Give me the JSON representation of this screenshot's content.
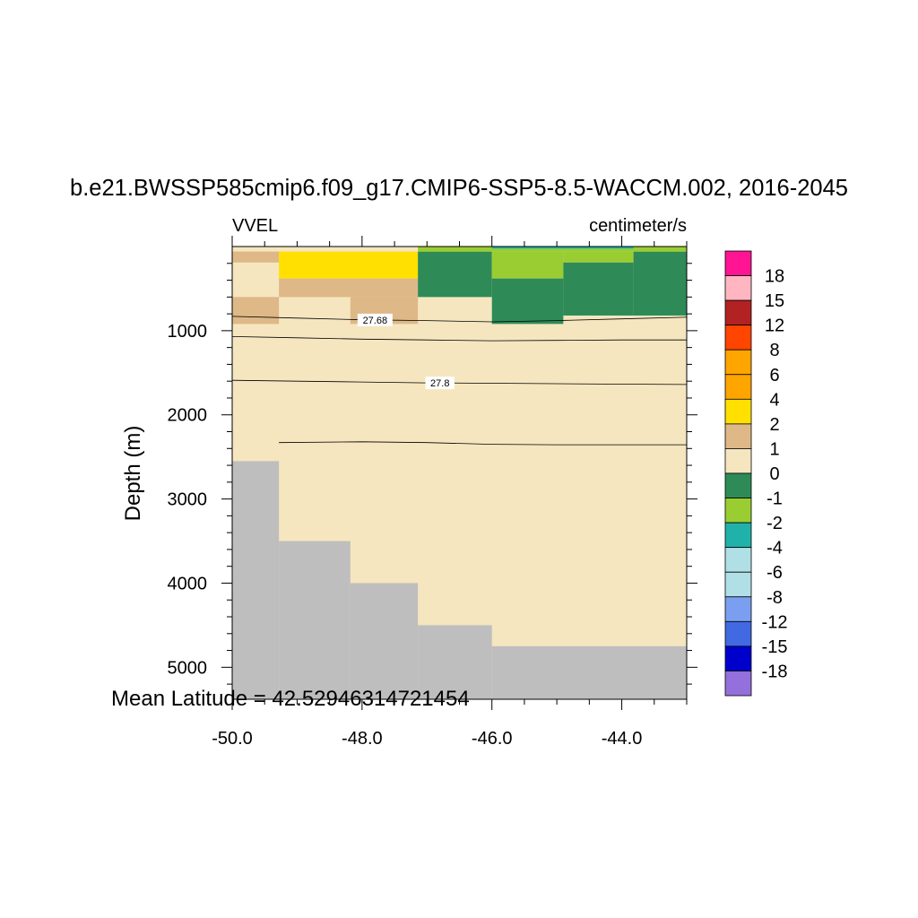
{
  "chart_data": {
    "type": "heatmap",
    "title": "b.e21.BWSSP585cmip6.f09_g17.CMIP6-SSP5-8.5-WACCM.002, 2016-2045",
    "left_subtitle": "VVEL",
    "right_subtitle": "centimeter/s",
    "xlabel": "",
    "ylabel": "Depth (m)",
    "footer_text": "Mean Latitude = 42.52946314721454",
    "xlim": [
      -50.0,
      -43.0
    ],
    "ylim": [
      5380,
      0
    ],
    "x_ticks": [
      -50.0,
      -48.0,
      -46.0,
      -44.0
    ],
    "x_tick_labels": [
      "-50.0",
      "-48.0",
      "-46.0",
      "-44.0"
    ],
    "y_ticks": [
      1000,
      2000,
      3000,
      4000,
      5000
    ],
    "y_tick_labels": [
      "1000",
      "2000",
      "3000",
      "4000",
      "5000"
    ],
    "colorbar": {
      "labels": [
        "18",
        "15",
        "12",
        "8",
        "6",
        "4",
        "2",
        "1",
        "0",
        "-1",
        "-2",
        "-4",
        "-6",
        "-8",
        "-12",
        "-15",
        "-18"
      ],
      "colors": [
        "#ff1493",
        "#ffb6c1",
        "#b22222",
        "#ff4500",
        "#ffa500",
        "#ffa500",
        "#ffe000",
        "#deb887",
        "#f5e6bf",
        "#2e8b57",
        "#9acd32",
        "#20b2aa",
        "#b0e0e6",
        "#b0e0e6",
        "#7b9ff0",
        "#4169e1",
        "#0000cd",
        "#9370db"
      ]
    },
    "missing_color": "#bebebe",
    "cells": [
      {
        "x0": -50.0,
        "x1": -43.0,
        "y0": 0,
        "y1": 5380,
        "v": 0.5
      },
      {
        "x0": -50.0,
        "x1": -49.28,
        "y0": 60,
        "y1": 190,
        "v": 1.5
      },
      {
        "x0": -50.0,
        "x1": -49.28,
        "y0": 600,
        "y1": 920,
        "v": 1.5
      },
      {
        "x0": -49.28,
        "x1": -47.14,
        "y0": 60,
        "y1": 380,
        "v": 3
      },
      {
        "x0": -49.28,
        "x1": -47.14,
        "y0": 380,
        "y1": 600,
        "v": 1.5
      },
      {
        "x0": -48.18,
        "x1": -47.14,
        "y0": 600,
        "y1": 920,
        "v": 1.5
      },
      {
        "x0": -47.14,
        "x1": -46.0,
        "y0": 60,
        "y1": 600,
        "v": -0.5
      },
      {
        "x0": -46.0,
        "x1": -44.9,
        "y0": 60,
        "y1": 380,
        "v": -1.5
      },
      {
        "x0": -46.0,
        "x1": -44.9,
        "y0": 380,
        "y1": 920,
        "v": -0.5
      },
      {
        "x0": -44.9,
        "x1": -43.82,
        "y0": 60,
        "y1": 190,
        "v": -1.5
      },
      {
        "x0": -44.9,
        "x1": -43.82,
        "y0": 190,
        "y1": 820,
        "v": -0.5
      },
      {
        "x0": -43.82,
        "x1": -43.0,
        "y0": 60,
        "y1": 820,
        "v": -0.5
      },
      {
        "x0": -47.14,
        "x1": -43.0,
        "y0": 0,
        "y1": 60,
        "v": -1.5
      },
      {
        "x0": -46.0,
        "x1": -43.82,
        "y0": 0,
        "y1": 25,
        "v": -3
      },
      {
        "x0": -50.0,
        "x1": -49.28,
        "y0": 2550,
        "y1": 5380,
        "v": null
      },
      {
        "x0": -49.28,
        "x1": -48.18,
        "y0": 3500,
        "y1": 5380,
        "v": null
      },
      {
        "x0": -48.18,
        "x1": -47.14,
        "y0": 4000,
        "y1": 5380,
        "v": null
      },
      {
        "x0": -47.14,
        "x1": -46.0,
        "y0": 4500,
        "y1": 5380,
        "v": null
      },
      {
        "x0": -46.0,
        "x1": -43.0,
        "y0": 4750,
        "y1": 5380,
        "v": null
      }
    ],
    "contours": [
      {
        "label": "27.68",
        "label_x": -47.8,
        "points": [
          [
            -50.0,
            830
          ],
          [
            -49.0,
            850
          ],
          [
            -48.0,
            870
          ],
          [
            -47.0,
            880
          ],
          [
            -46.0,
            895
          ],
          [
            -45.0,
            880
          ],
          [
            -44.0,
            860
          ],
          [
            -43.0,
            840
          ]
        ]
      },
      {
        "label": "",
        "points": [
          [
            -50.0,
            1070
          ],
          [
            -49.0,
            1085
          ],
          [
            -48.0,
            1100
          ],
          [
            -47.0,
            1110
          ],
          [
            -46.0,
            1120
          ],
          [
            -45.0,
            1115
          ],
          [
            -44.0,
            1110
          ],
          [
            -43.0,
            1110
          ]
        ]
      },
      {
        "label": "27.8",
        "label_x": -46.8,
        "points": [
          [
            -50.0,
            1590
          ],
          [
            -49.0,
            1600
          ],
          [
            -48.0,
            1610
          ],
          [
            -47.0,
            1620
          ],
          [
            -46.0,
            1625
          ],
          [
            -45.0,
            1630
          ],
          [
            -44.0,
            1635
          ],
          [
            -43.0,
            1640
          ]
        ]
      },
      {
        "label": "",
        "points": [
          [
            -49.28,
            2330
          ],
          [
            -48.0,
            2320
          ],
          [
            -47.0,
            2330
          ],
          [
            -46.0,
            2350
          ],
          [
            -45.0,
            2355
          ],
          [
            -44.0,
            2355
          ],
          [
            -43.0,
            2355
          ]
        ]
      }
    ]
  }
}
